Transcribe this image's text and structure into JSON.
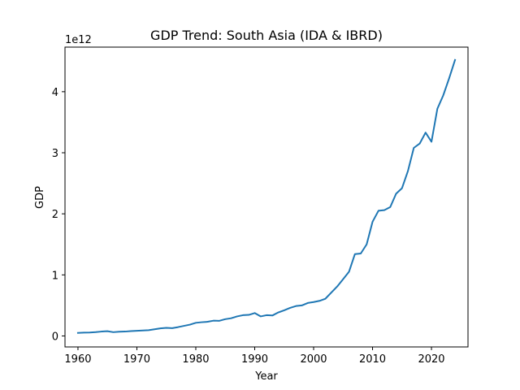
{
  "chart_data": {
    "type": "line",
    "title": "GDP Trend: South Asia (IDA & IBRD)",
    "xlabel": "Year",
    "ylabel": "GDP",
    "y_offset_label": "1e12",
    "xlim": [
      1957.8,
      2026.2
    ],
    "ylim": [
      -0.18,
      4.73
    ],
    "x_ticks": [
      1960,
      1970,
      1980,
      1990,
      2000,
      2010,
      2020
    ],
    "x_tick_labels": [
      "1960",
      "1970",
      "1980",
      "1990",
      "2000",
      "2010",
      "2020"
    ],
    "y_ticks": [
      0,
      1,
      2,
      3,
      4
    ],
    "y_tick_labels": [
      "0",
      "1",
      "2",
      "3",
      "4"
    ],
    "grid": false,
    "legend": "none",
    "line_color": "#1f77b4",
    "series": [
      {
        "x": [
          1960,
          1961,
          1962,
          1963,
          1964,
          1965,
          1966,
          1967,
          1968,
          1969,
          1970,
          1971,
          1972,
          1973,
          1974,
          1975,
          1976,
          1977,
          1978,
          1979,
          1980,
          1981,
          1982,
          1983,
          1984,
          1985,
          1986,
          1987,
          1988,
          1989,
          1990,
          1991,
          1992,
          1993,
          1994,
          1995,
          1996,
          1997,
          1998,
          1999,
          2000,
          2001,
          2002,
          2003,
          2004,
          2005,
          2006,
          2007,
          2008,
          2009,
          2010,
          2011,
          2012,
          2013,
          2014,
          2015,
          2016,
          2017,
          2018,
          2019,
          2020,
          2021,
          2022,
          2023,
          2024
        ],
        "values": [
          0.05,
          0.055,
          0.057,
          0.063,
          0.072,
          0.078,
          0.062,
          0.07,
          0.072,
          0.08,
          0.085,
          0.09,
          0.094,
          0.11,
          0.125,
          0.132,
          0.128,
          0.145,
          0.165,
          0.185,
          0.215,
          0.225,
          0.232,
          0.25,
          0.248,
          0.275,
          0.29,
          0.32,
          0.34,
          0.345,
          0.375,
          0.32,
          0.34,
          0.335,
          0.385,
          0.42,
          0.46,
          0.49,
          0.5,
          0.54,
          0.555,
          0.575,
          0.61,
          0.71,
          0.81,
          0.93,
          1.05,
          1.34,
          1.35,
          1.5,
          1.87,
          2.05,
          2.06,
          2.11,
          2.33,
          2.42,
          2.7,
          3.08,
          3.15,
          3.33,
          3.18,
          3.72,
          3.94,
          4.22,
          4.52
        ]
      }
    ]
  }
}
